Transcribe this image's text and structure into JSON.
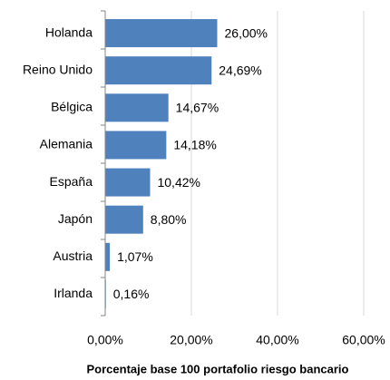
{
  "chart_data": {
    "type": "barh",
    "xlabel": "Porcentaje base 100 portafolio riesgo bancario",
    "categories": [
      "Holanda",
      "Reino Unido",
      "Bélgica",
      "Alemania",
      "España",
      "Japón",
      "Austria",
      "Irlanda"
    ],
    "values": [
      26.0,
      24.69,
      14.67,
      14.18,
      10.42,
      8.8,
      1.07,
      0.16
    ],
    "value_labels": [
      "26,00%",
      "24,69%",
      "14,67%",
      "14,18%",
      "10,42%",
      "8,80%",
      "1,07%",
      "0,16%"
    ],
    "color": "#4f81bd",
    "xlim": [
      0,
      60
    ],
    "xticks": [
      {
        "value": 0,
        "label": "0,00%"
      },
      {
        "value": 20,
        "label": "20,00%"
      },
      {
        "value": 40,
        "label": "40,00%"
      },
      {
        "value": 60,
        "label": "60,00%"
      }
    ],
    "grid": true
  }
}
